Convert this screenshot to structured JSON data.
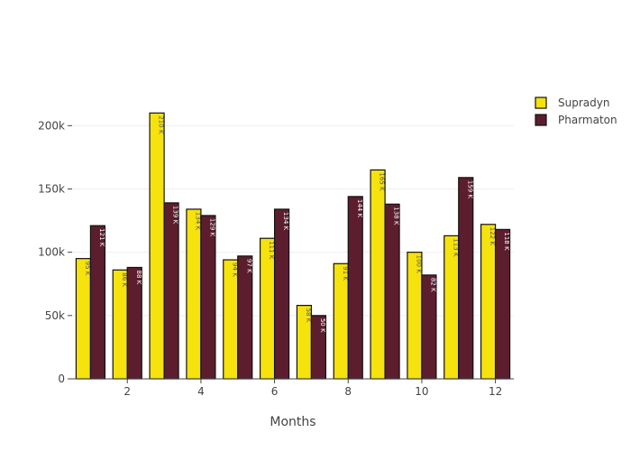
{
  "chart_data": {
    "type": "bar",
    "title": "",
    "xlabel": "Months",
    "ylabel": "",
    "x": [
      1,
      2,
      3,
      4,
      5,
      6,
      7,
      8,
      9,
      10,
      11,
      12
    ],
    "x_ticks": [
      2,
      4,
      6,
      8,
      10,
      12
    ],
    "x_tick_labels": [
      "2",
      "4",
      "6",
      "8",
      "10",
      "12"
    ],
    "y_ticks": [
      0,
      50000,
      100000,
      150000,
      200000
    ],
    "y_tick_labels": [
      "0",
      "50k",
      "100k",
      "150k",
      "200k"
    ],
    "ylim": [
      0,
      228000
    ],
    "grid": "horizontal",
    "legend_position": "top-right",
    "series": [
      {
        "name": "Supradyn",
        "color": "#F6E20C",
        "label_color": "#555555",
        "values": [
          95000,
          86000,
          210000,
          134000,
          94000,
          111000,
          58000,
          91000,
          165000,
          100000,
          113000,
          122000
        ],
        "labels": [
          "95 K",
          "86 K",
          "210 K",
          "134 K",
          "94 K",
          "111 K",
          "58 K",
          "91 K",
          "165 K",
          "100 K",
          "113 K",
          "122 K"
        ]
      },
      {
        "name": "Pharmaton",
        "color": "#5C1E2E",
        "label_color": "#ffffff",
        "values": [
          121000,
          88000,
          139000,
          129000,
          97000,
          134000,
          50000,
          144000,
          138000,
          82000,
          159000,
          118000
        ],
        "labels": [
          "121 K",
          "88 K",
          "139 K",
          "129 K",
          "97 K",
          "134 K",
          "50 K",
          "144 K",
          "138 K",
          "82 K",
          "159 K",
          "118 K"
        ]
      }
    ]
  }
}
